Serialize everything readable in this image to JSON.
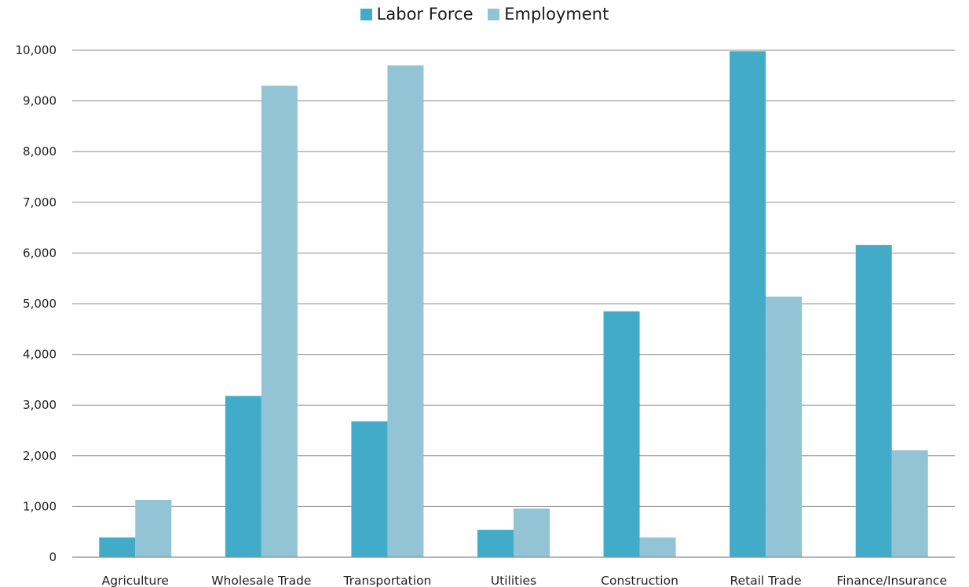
{
  "chart_data": {
    "type": "bar",
    "categories": [
      "Agriculture",
      "Wholesale Trade",
      "Transportation",
      "Utilities",
      "Construction",
      "Retail Trade",
      "Finance/Insurance"
    ],
    "series": [
      {
        "name": "Labor Force",
        "color": "#42abc8",
        "values": [
          390,
          3180,
          2680,
          540,
          4850,
          9980,
          6160
        ]
      },
      {
        "name": "Employment",
        "color": "#93c4d5",
        "values": [
          1130,
          9300,
          9700,
          960,
          390,
          5140,
          2110
        ]
      }
    ],
    "ylim": [
      0,
      10000
    ],
    "yticks": [
      0,
      1000,
      2000,
      3000,
      4000,
      5000,
      6000,
      7000,
      8000,
      9000,
      10000
    ],
    "ytick_labels": [
      "0",
      "1,000",
      "2,000",
      "3,000",
      "4,000",
      "5,000",
      "6,000",
      "7,000",
      "8,000",
      "9,000",
      "10,000"
    ],
    "grid": true,
    "legend_position": "top-center",
    "title": "",
    "xlabel": "",
    "ylabel": ""
  }
}
